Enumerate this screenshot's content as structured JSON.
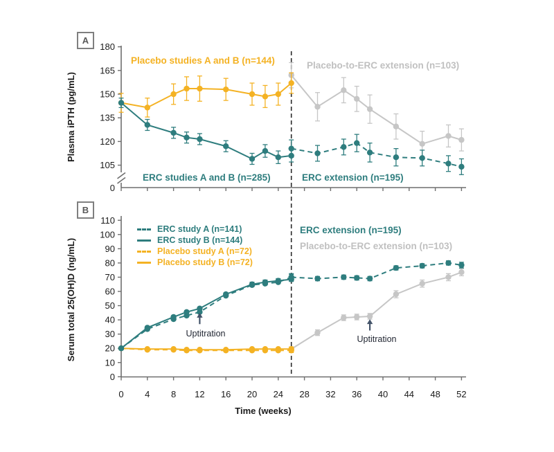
{
  "colors": {
    "teal": "#2E7D7E",
    "yellow": "#F4B223",
    "gray_line": "#C6C6C6",
    "gray_label": "#C0C0C0",
    "axis": "#6E6E6E",
    "divider": "#2A2A2A",
    "arrow_navy": "#44546A"
  },
  "x_axis": {
    "title": "Time (weeks)",
    "ticks": [
      0,
      4,
      8,
      12,
      16,
      20,
      24,
      28,
      32,
      36,
      40,
      44,
      48,
      52
    ]
  },
  "panel_a": {
    "tag": "A",
    "y_title": "Plasma iPTH (pg/mL)",
    "y_ticks": [
      180,
      165,
      150,
      135,
      120,
      105
    ],
    "y_zero": "0",
    "labels": {
      "placebo": "Placebo studies A and B (n=144)",
      "placebo_ext": "Placebo-to-ERC extension (n=103)",
      "erc": "ERC studies A and B (n=285)",
      "erc_ext": "ERC extension (n=195)"
    }
  },
  "panel_b": {
    "tag": "B",
    "y_title": "Serum total 25(OH)D (ng/mL)",
    "y_ticks": [
      110,
      100,
      90,
      80,
      70,
      60,
      50,
      40,
      30,
      20,
      10,
      0
    ],
    "legend": [
      {
        "label": "ERC study A (n=141)",
        "style": "dashed",
        "color": "teal"
      },
      {
        "label": "ERC study B (n=144)",
        "style": "solid",
        "color": "teal"
      },
      {
        "label": "Placebo study A (n=72)",
        "style": "dashed",
        "color": "yellow"
      },
      {
        "label": "Placebo study B (n=72)",
        "style": "solid",
        "color": "yellow"
      }
    ],
    "labels": {
      "erc_ext": "ERC extension (n=195)",
      "placebo_ext": "Placebo-to-ERC extension (n=103)"
    },
    "uptitration": "Uptitration"
  },
  "chart_data": [
    {
      "type": "line",
      "panel": "a",
      "title": "Plasma iPTH over time",
      "xlabel": "Time (weeks)",
      "ylabel": "Plasma iPTH (pg/mL)",
      "ylim": [
        105,
        180
      ],
      "axis_break_to_zero": true,
      "divider_week": 26,
      "series": [
        {
          "name": "Placebo-to-ERC extension (n=103)",
          "color": "#C6C6C6",
          "style": "solid",
          "x": [
            26,
            30,
            34,
            36,
            38,
            42,
            46,
            50,
            52
          ],
          "y": [
            162,
            142,
            152.5,
            147,
            140.5,
            129.5,
            118.5,
            123.5,
            121
          ],
          "err": [
            8,
            9,
            8,
            8,
            9,
            8,
            8,
            7,
            7
          ]
        },
        {
          "name": "Placebo studies A and B (n=144)",
          "color": "#F4B223",
          "style": "solid",
          "x": [
            0,
            4,
            8,
            10,
            12,
            16,
            20,
            22,
            24,
            26
          ],
          "y": [
            144.5,
            141.5,
            150,
            153.5,
            153.5,
            153,
            150,
            148.5,
            150,
            157
          ],
          "err": [
            6,
            6,
            6.5,
            7.5,
            8,
            7,
            7,
            7,
            7,
            6.5
          ]
        },
        {
          "name": "ERC extension (n=195)",
          "color": "#2E7D7E",
          "style": "dashed",
          "x": [
            26,
            30,
            34,
            36,
            38,
            42,
            46,
            50,
            52
          ],
          "y": [
            115.5,
            112.5,
            116.5,
            119,
            113,
            110,
            109.5,
            106,
            104
          ],
          "err": [
            5.5,
            5,
            5,
            5.5,
            6,
            5.5,
            5,
            5,
            5
          ]
        },
        {
          "name": "ERC studies A and B (n=285)",
          "color": "#2E7D7E",
          "style": "solid",
          "x": [
            0,
            4,
            8,
            10,
            12,
            16,
            20,
            22,
            24,
            26
          ],
          "y": [
            144.5,
            130.5,
            125.5,
            122.5,
            121.5,
            117,
            109,
            114,
            110,
            111
          ],
          "err": [
            3,
            3.5,
            3.5,
            3.5,
            3.5,
            3.5,
            3.5,
            4,
            4,
            4
          ]
        }
      ]
    },
    {
      "type": "line",
      "panel": "b",
      "title": "Serum total 25(OH)D over time",
      "xlabel": "Time (weeks)",
      "ylabel": "Serum total 25(OH)D (ng/mL)",
      "ylim": [
        0,
        110
      ],
      "divider_week": 26,
      "uptitration_arrows": [
        {
          "week": 12,
          "from_value": 37,
          "to_value": 44.5
        },
        {
          "week": 38,
          "from_value": 32.5,
          "to_value": 40
        }
      ],
      "series": [
        {
          "name": "Placebo-to-ERC extension (n=103)",
          "color": "#C6C6C6",
          "style": "solid",
          "x": [
            26,
            30,
            34,
            36,
            38,
            42,
            46,
            50,
            52
          ],
          "y": [
            19.5,
            31,
            41.5,
            42,
            42.5,
            58,
            65.5,
            70,
            73.5
          ],
          "err": [
            0,
            2,
            2,
            2,
            2,
            2.5,
            2.5,
            2.5,
            2.5
          ]
        },
        {
          "name": "Placebo study A (n=72)",
          "color": "#F4B223",
          "style": "dashed",
          "x": [
            0,
            4,
            8,
            10,
            12,
            16,
            20,
            22,
            24,
            26
          ],
          "y": [
            20,
            19,
            19,
            18.5,
            18.5,
            18.5,
            18.5,
            18.5,
            18.5,
            18.5
          ],
          "err": [
            0,
            0,
            0,
            0,
            0,
            0,
            0,
            0,
            0,
            1.5
          ]
        },
        {
          "name": "Placebo study B (n=72)",
          "color": "#F4B223",
          "style": "solid",
          "x": [
            0,
            4,
            8,
            10,
            12,
            16,
            20,
            22,
            24,
            26
          ],
          "y": [
            20,
            19.5,
            19.5,
            19,
            19,
            19,
            19.5,
            19.5,
            19.5,
            19.5
          ],
          "err": [
            0,
            0,
            0,
            0,
            0,
            0,
            0,
            0,
            0,
            1.5
          ]
        },
        {
          "name": "ERC study A (n=141)",
          "color": "#2E7D7E",
          "style": "dashed",
          "x": [
            0,
            4,
            8,
            10,
            12,
            16,
            20,
            22,
            24,
            26
          ],
          "y": [
            20,
            33.5,
            40.5,
            43,
            45.5,
            57,
            64.5,
            65.5,
            66.5,
            70
          ],
          "err": [
            0,
            0,
            0,
            0,
            0,
            0,
            0,
            0,
            0,
            2.5
          ]
        },
        {
          "name": "ERC study B (n=144)",
          "color": "#2E7D7E",
          "style": "solid",
          "x": [
            0,
            4,
            8,
            10,
            12,
            16,
            20,
            22,
            24,
            26
          ],
          "y": [
            20,
            34.5,
            42,
            45.5,
            48,
            58,
            65,
            66.5,
            67.5,
            68.5
          ],
          "err": [
            0,
            0,
            1,
            1,
            1,
            1,
            1.5,
            1.5,
            1.5,
            1.5
          ]
        },
        {
          "name": "ERC extension (n=195)",
          "color": "#2E7D7E",
          "style": "dashed",
          "x": [
            26,
            30,
            34,
            36,
            38,
            42,
            46,
            50,
            52
          ],
          "y": [
            70,
            69,
            70,
            69.5,
            69,
            76.5,
            78,
            80,
            78.5
          ],
          "err": [
            2,
            1.5,
            1.5,
            1.5,
            1.5,
            1.5,
            1.5,
            1.5,
            2
          ]
        }
      ]
    }
  ]
}
